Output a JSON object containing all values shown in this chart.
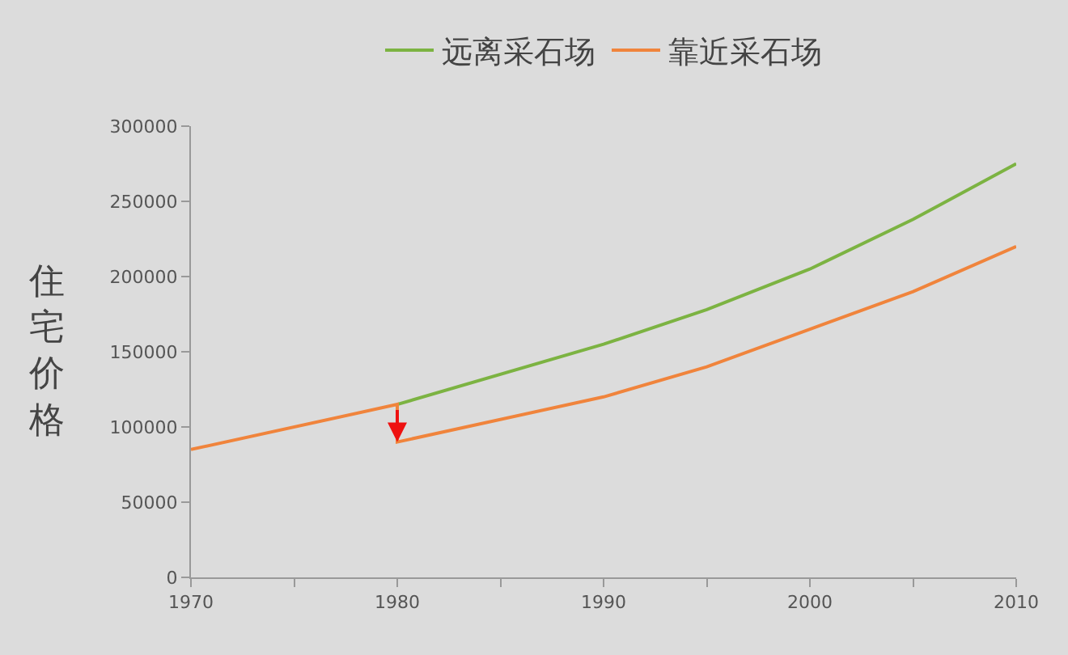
{
  "chart_data": {
    "type": "line",
    "ylabel": "住宅价格",
    "series": [
      {
        "name": "远离采石场",
        "color": "#7cb342",
        "x": [
          1980,
          1990,
          1995,
          2000,
          2005,
          2010
        ],
        "values": [
          115000,
          155000,
          178000,
          205000,
          238000,
          275000
        ]
      },
      {
        "name": "靠近采石场",
        "color": "#f0843c",
        "x": [
          1970,
          1980,
          1980,
          1990,
          1995,
          2000,
          2005,
          2010
        ],
        "values": [
          85000,
          115000,
          90000,
          120000,
          140000,
          165000,
          190000,
          220000
        ]
      }
    ],
    "xlim": [
      1970,
      2010
    ],
    "xticks": [
      1970,
      {
        "value": 1975,
        "label": null
      },
      1980,
      {
        "value": 1985,
        "label": null
      },
      1990,
      {
        "value": 1995,
        "label": null
      },
      2000,
      {
        "value": 2005,
        "label": null
      },
      2010
    ],
    "ylim": [
      0,
      300000
    ],
    "yticks": [
      0,
      50000,
      100000,
      150000,
      200000,
      250000,
      300000
    ],
    "grid": false,
    "legend": "top",
    "marker": "none",
    "line_style": "solid"
  }
}
